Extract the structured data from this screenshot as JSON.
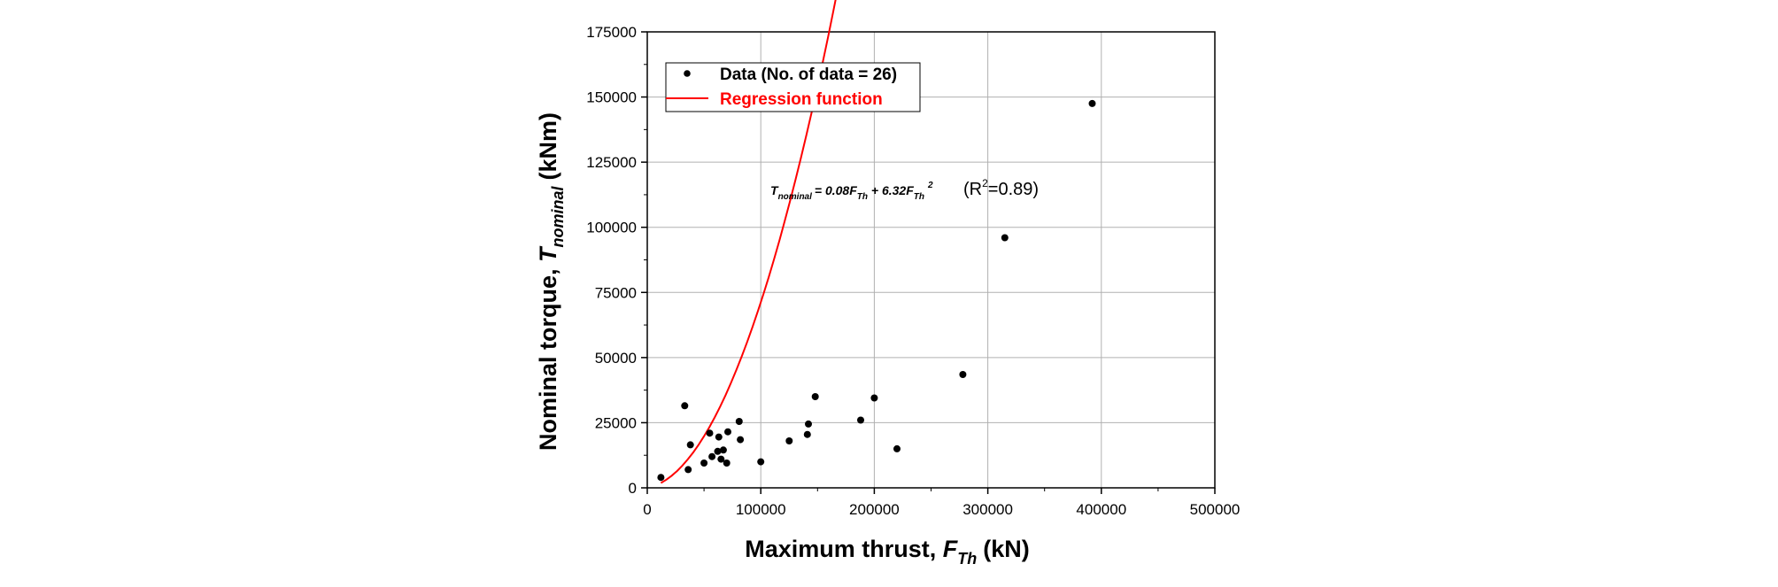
{
  "chart_data": {
    "type": "scatter",
    "xlabel": "Maximum thrust,",
    "xlabel_var": "F",
    "xlabel_sub": "Th",
    "xlabel_unit": "(kN)",
    "ylabel": "Nominal torque,",
    "ylabel_var": "T",
    "ylabel_sub": "nominal",
    "ylabel_unit": "(kNm)",
    "xlim": [
      0,
      500000
    ],
    "ylim": [
      0,
      175000
    ],
    "xticks": [
      "0",
      "100000",
      "200000",
      "300000",
      "400000",
      "500000"
    ],
    "yticks": [
      "0",
      "25000",
      "50000",
      "75000",
      "100000",
      "125000",
      "150000",
      "175000"
    ],
    "grid": true,
    "legend_position": "top-left",
    "legend": {
      "data_label": "Data (No. of data = 26)",
      "fit_label": "Regression function"
    },
    "equation": {
      "lhs": "T",
      "lhs_sub": "nominal",
      "rhs_a": "= 0.08F",
      "rhs_a_sub": "Th",
      "rhs_b": " + 6.32F",
      "rhs_b_sub": "Th",
      "rhs_b_exp": "2",
      "r2_open": "(R",
      "r2_exp": "2",
      "r2_close": "=0.89)"
    },
    "colors": {
      "points": "#000000",
      "fit": "#ff0000",
      "grid": "#b0b0b0"
    },
    "series": [
      {
        "name": "Data (No. of data = 26)",
        "points": [
          [
            12000,
            4000
          ],
          [
            33000,
            31500
          ],
          [
            36000,
            7000
          ],
          [
            38000,
            16500
          ],
          [
            50000,
            9500
          ],
          [
            55000,
            21000
          ],
          [
            57000,
            12000
          ],
          [
            62000,
            14000
          ],
          [
            63000,
            19500
          ],
          [
            65000,
            11000
          ],
          [
            67000,
            14500
          ],
          [
            70000,
            9500
          ],
          [
            71000,
            21500
          ],
          [
            81000,
            25500
          ],
          [
            82000,
            18500
          ],
          [
            100000,
            10000
          ],
          [
            125000,
            18000
          ],
          [
            141000,
            20500
          ],
          [
            142000,
            24500
          ],
          [
            148000,
            35000
          ],
          [
            188000,
            26000
          ],
          [
            200000,
            34500
          ],
          [
            220000,
            15000
          ],
          [
            278000,
            43500
          ],
          [
            315000,
            96000
          ],
          [
            392000,
            147500
          ]
        ]
      },
      {
        "name": "Regression function",
        "type": "line",
        "fit": {
          "a": 0.08,
          "b": 6.32,
          "x_from": 12000,
          "x_to": 392000
        }
      }
    ]
  }
}
